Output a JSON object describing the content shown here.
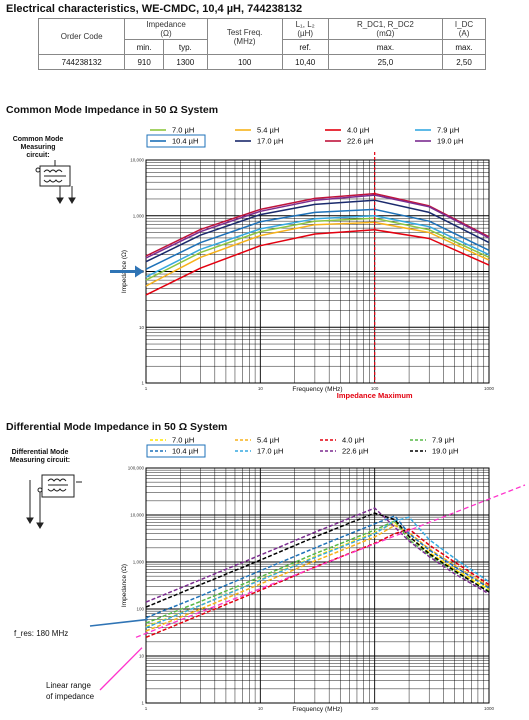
{
  "title": "Electrical characteristics, WE-CMDC, 10,4 µH, 744238132",
  "table": {
    "h_order": "Order Code",
    "h_imp": "Impedance",
    "h_imp_unit": "(Ω)",
    "h_freq": "Test Freq.",
    "h_freq_unit": "(MHz)",
    "h_l": "L₁, L₂",
    "h_l_unit": "(µH)",
    "h_r": "R_DC1, R_DC2",
    "h_r_unit": "(mΩ)",
    "h_i": "I_DC",
    "h_i_unit": "(A)",
    "s_min": "min.",
    "s_typ": "typ.",
    "s_ref": "ref.",
    "s_max1": "max.",
    "s_max2": "max.",
    "v_order": "744238132",
    "v_min": "910",
    "v_typ": "1300",
    "v_freq": "100",
    "v_l": "10,40",
    "v_r": "25,0",
    "v_i": "2,50"
  },
  "cm": {
    "heading": "Common Mode Impedance in 50 Ω System",
    "circuit_label": "Common Mode Measuring circuit:",
    "xlabel": "Frequency (MHz)",
    "ylabel": "Impedance (Ω)",
    "annotation": "Impedance Maximum"
  },
  "dm": {
    "heading": "Differential Mode Impedance in 50 Ω System",
    "circuit_label": "Differential Mode Measuring circuit:",
    "xlabel": "Frequency (MHz)",
    "ylabel": "Impedance (Ω)",
    "fres_label": "f_res: 180 MHz",
    "linear_label_1": "Linear range",
    "linear_label_2": "of impedance"
  },
  "colors": {
    "arrow_blue": "#2f74b5",
    "imp_max_red": "#e3000f",
    "linear_pink": "#ff33cc"
  },
  "chart_data": [
    {
      "type": "line",
      "title": "Common Mode Impedance in 50 Ω System",
      "xlabel": "Frequency (MHz)",
      "ylabel": "Impedance (Ω)",
      "xscale": "log",
      "yscale": "log",
      "xlim": [
        1,
        1000
      ],
      "ylim": [
        1,
        10000
      ],
      "x_ticks": [
        "1",
        "10",
        "100",
        "1000"
      ],
      "y_ticks": [
        "1",
        "10",
        "100",
        "1,000",
        "10,000"
      ],
      "highlighted_series": "10.4 µH",
      "marker_x": 100,
      "x": [
        1,
        3,
        10,
        30,
        100,
        300,
        1000
      ],
      "series": [
        {
          "name": "7.0 µH",
          "color": "#8dc63f",
          "values": [
            70,
            220,
            520,
            800,
            900,
            560,
            180
          ]
        },
        {
          "name": "5.4 µH",
          "color": "#f7b21b",
          "values": [
            55,
            180,
            440,
            690,
            760,
            500,
            160
          ]
        },
        {
          "name": "4.0 µH",
          "color": "#e3000f",
          "values": [
            38,
            115,
            290,
            470,
            560,
            390,
            130
          ]
        },
        {
          "name": "7.9 µH",
          "color": "#36a9e1",
          "values": [
            80,
            250,
            580,
            880,
            1000,
            640,
            200
          ]
        },
        {
          "name": "10.4 µH",
          "color": "#1d71b8",
          "values": [
            110,
            330,
            780,
            1150,
            1300,
            800,
            240
          ]
        },
        {
          "name": "17.0 µH",
          "color": "#1a2a6c",
          "values": [
            150,
            450,
            1050,
            1600,
            1900,
            1150,
            330
          ]
        },
        {
          "name": "22.6 µH",
          "color": "#c0143c",
          "values": [
            190,
            570,
            1300,
            2050,
            2500,
            1500,
            420
          ]
        },
        {
          "name": "19.0 µH",
          "color": "#7b2c8f",
          "values": [
            175,
            520,
            1200,
            1900,
            2350,
            1450,
            400
          ]
        }
      ]
    },
    {
      "type": "line",
      "title": "Differential Mode Impedance in 50 Ω System",
      "xlabel": "Frequency (MHz)",
      "ylabel": "Impedance (Ω)",
      "xscale": "log",
      "yscale": "log",
      "xlim": [
        1,
        1000
      ],
      "ylim": [
        1,
        100000
      ],
      "x_ticks": [
        "1",
        "10",
        "100",
        "1000"
      ],
      "y_ticks": [
        "1",
        "10",
        "100",
        "1,000",
        "10,000",
        "100,000"
      ],
      "fres_mhz": 180,
      "x": [
        1,
        3,
        10,
        30,
        100,
        150,
        200,
        300,
        500,
        1000
      ],
      "series": [
        {
          "name": "7.0 µH",
          "color": "#ffe600",
          "dash": true,
          "values": [
            42,
            120,
            420,
            1300,
            4200,
            7000,
            3500,
            1600,
            700,
            260
          ]
        },
        {
          "name": "5.4 µH",
          "color": "#f7b21b",
          "dash": true,
          "values": [
            34,
            100,
            340,
            1050,
            3400,
            6000,
            4200,
            1900,
            850,
            300
          ]
        },
        {
          "name": "4.0 µH",
          "color": "#e3000f",
          "dash": true,
          "values": [
            25,
            75,
            250,
            780,
            2500,
            4000,
            5000,
            2300,
            1000,
            330
          ]
        },
        {
          "name": "7.9 µH",
          "color": "#57b947",
          "dash": true,
          "values": [
            50,
            145,
            480,
            1500,
            4800,
            7500,
            3000,
            1400,
            620,
            240
          ]
        },
        {
          "name": "10.4 µH",
          "color": "#1d71b8",
          "dash": true,
          "values": [
            65,
            190,
            650,
            2000,
            6500,
            9500,
            4000,
            1800,
            800,
            280
          ]
        },
        {
          "name": "17.0 µH",
          "color": "#36a9e1",
          "dash": true,
          "values": [
            40,
            120,
            410,
            1250,
            4000,
            7500,
            9000,
            3000,
            1200,
            380
          ]
        },
        {
          "name": "22.6 µH",
          "color": "#7b2c8f",
          "dash": true,
          "values": [
            140,
            420,
            1400,
            4300,
            14000,
            5500,
            2800,
            1300,
            560,
            210
          ]
        },
        {
          "name": "19.0 µH",
          "color": "#000000",
          "dash": true,
          "values": [
            110,
            330,
            1100,
            3400,
            11000,
            8000,
            3500,
            1500,
            650,
            230
          ]
        }
      ]
    }
  ]
}
